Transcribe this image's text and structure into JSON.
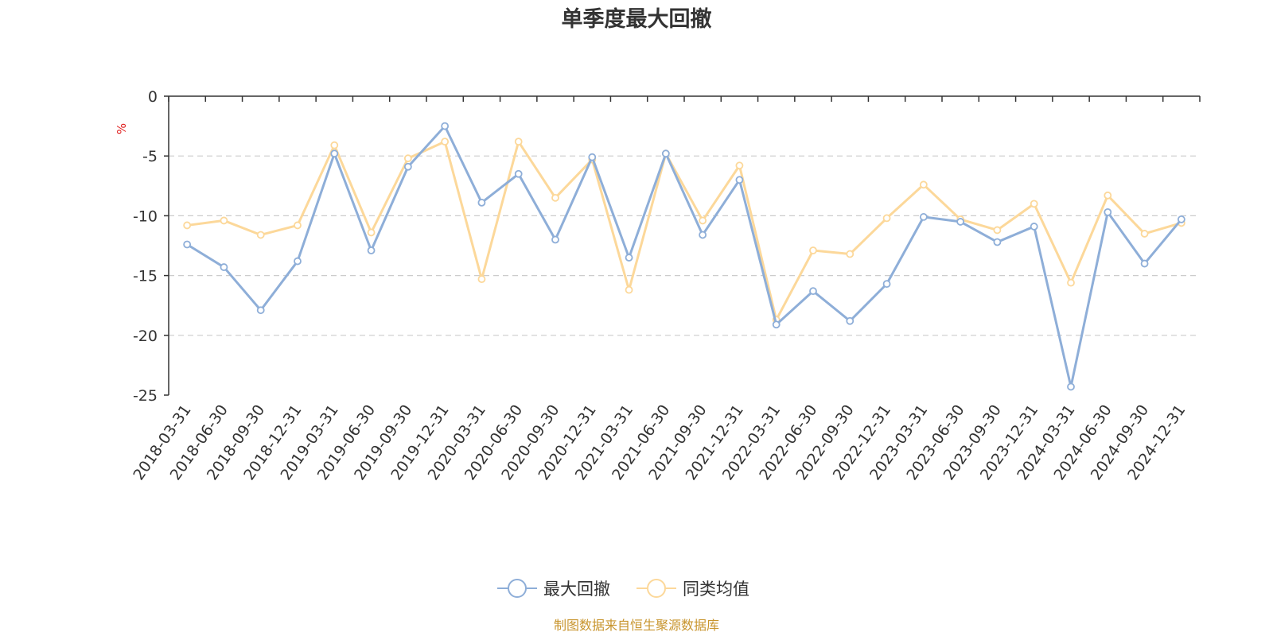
{
  "chart_data": {
    "type": "line",
    "title": "单季度最大回撤",
    "ylabel": "%",
    "ylim": [
      -25,
      0
    ],
    "yticks": [
      0,
      -5,
      -10,
      -15,
      -20,
      -25
    ],
    "categories": [
      "2018-03-31",
      "2018-06-30",
      "2018-09-30",
      "2018-12-31",
      "2019-03-31",
      "2019-06-30",
      "2019-09-30",
      "2019-12-31",
      "2020-03-31",
      "2020-06-30",
      "2020-09-30",
      "2020-12-31",
      "2021-03-31",
      "2021-06-30",
      "2021-09-30",
      "2021-12-31",
      "2022-03-31",
      "2022-06-30",
      "2022-09-30",
      "2022-12-31",
      "2023-03-31",
      "2023-06-30",
      "2023-09-30",
      "2023-12-31",
      "2024-03-31",
      "2024-06-30",
      "2024-09-30",
      "2024-12-31"
    ],
    "series": [
      {
        "name": "最大回撤",
        "color": "#8eaed8",
        "values": [
          -12.4,
          -14.3,
          -17.9,
          -13.8,
          -4.8,
          -12.9,
          -5.9,
          -2.5,
          -8.9,
          -6.5,
          -12.0,
          -5.1,
          -13.5,
          -4.8,
          -11.6,
          -7.0,
          -19.1,
          -16.3,
          -18.8,
          -15.7,
          -10.1,
          -10.5,
          -12.2,
          -10.9,
          -24.3,
          -9.7,
          -14.0,
          -10.3
        ]
      },
      {
        "name": "同类均值",
        "color": "#fcd89a",
        "values": [
          -10.8,
          -10.4,
          -11.6,
          -10.8,
          -4.1,
          -11.4,
          -5.2,
          -3.8,
          -15.3,
          -3.8,
          -8.5,
          -5.3,
          -16.2,
          -4.8,
          -10.4,
          -5.8,
          -18.7,
          -12.9,
          -13.2,
          -10.2,
          -7.4,
          -10.3,
          -11.2,
          -9.0,
          -15.6,
          -8.3,
          -11.5,
          -10.6
        ]
      }
    ],
    "source": "制图数据来自恒生聚源数据库",
    "colors": {
      "axis": "#333333",
      "grid": "#cccccc",
      "unit": "#e02020",
      "source": "#c8952e",
      "marker_fill": "#ffffff"
    }
  }
}
